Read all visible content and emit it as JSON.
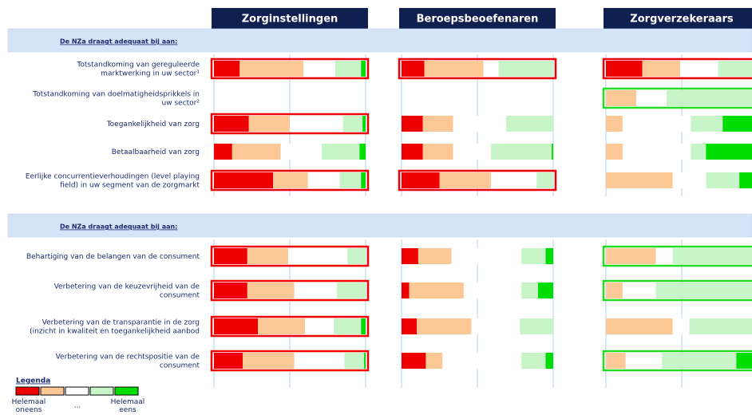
{
  "chart_data": {
    "type": "diverging-stacked-bar",
    "panels": [
      "Zorginstellingen",
      "Beroepsbeoefenaren",
      "Zorgverzekeraars"
    ],
    "colors": [
      "#ee0000",
      "#fbc896",
      "#ffffff",
      "#c8f5c8",
      "#00dd00"
    ],
    "sections": [
      {
        "heading": "De NZa draagt adequaat bij aan:",
        "rows": [
          {
            "label": [
              "Totstandkoming van gereguleerde",
              "marktwerking in uw sector¹"
            ],
            "values": [
              [
                17,
                42,
                21,
                17,
                3
              ],
              [
                15,
                39,
                10,
                36,
                0
              ],
              [
                24,
                25,
                25,
                26,
                0
              ]
            ],
            "highlight": [
              "#ee0000",
              "#ee0000",
              "#ee0000"
            ]
          },
          {
            "label": [
              "Totstandkoming van doelmatigheidsprikkels in",
              "uw sector²"
            ],
            "values": [
              null,
              null,
              [
                0,
                20,
                20,
                60,
                0
              ]
            ],
            "highlight": [
              null,
              null,
              "#22dd22"
            ]
          },
          {
            "label": [
              "Toegankelijkheid van zorg"
            ],
            "values": [
              [
                23,
                27,
                35,
                13,
                2
              ],
              [
                14,
                20,
                35,
                31,
                0
              ],
              [
                0,
                11,
                45,
                21,
                23
              ]
            ],
            "highlight": [
              "#ee0000",
              null,
              null
            ]
          },
          {
            "label": [
              "Betaalbaarheid van zorg"
            ],
            "values": [
              [
                12,
                32,
                27,
                25,
                4
              ],
              [
                14,
                20,
                25,
                40,
                1
              ],
              [
                0,
                11,
                45,
                10,
                34
              ]
            ],
            "highlight": [
              null,
              null,
              null
            ]
          },
          {
            "label": [
              "Eerlijke concurrentieverhoudingen (level playing",
              "field) in uw segment van de zorgmarkt"
            ],
            "values": [
              [
                39,
                23,
                21,
                14,
                3
              ],
              [
                25,
                34,
                30,
                11,
                0
              ],
              [
                0,
                44,
                22,
                22,
                12
              ]
            ],
            "highlight": [
              "#ee0000",
              "#ee0000",
              null
            ]
          }
        ]
      },
      {
        "heading": "De NZa draagt adequaat bij aan:",
        "rows": [
          {
            "label": [
              "Behartiging van de belangen van de consument"
            ],
            "values": [
              [
                22,
                27,
                39,
                12,
                0
              ],
              [
                11,
                22,
                46,
                16,
                5
              ],
              [
                0,
                33,
                11,
                56,
                0
              ]
            ],
            "highlight": [
              "#ee0000",
              null,
              "#22dd22"
            ]
          },
          {
            "label": [
              "Verbetering van de keuzevrijheid van de",
              "consument"
            ],
            "values": [
              [
                22,
                31,
                28,
                19,
                0
              ],
              [
                5,
                36,
                38,
                11,
                10
              ],
              [
                0,
                11,
                22,
                67,
                0
              ]
            ],
            "highlight": [
              "#ee0000",
              null,
              "#22dd22"
            ]
          },
          {
            "label": [
              "Verbetering van de transparantie in de zorg",
              "(inzicht in kwaliteit en toegankelijkheid aanbod"
            ],
            "values": [
              [
                29,
                31,
                19,
                18,
                3
              ],
              [
                10,
                36,
                32,
                22,
                0
              ],
              [
                0,
                44,
                11,
                45,
                0
              ]
            ],
            "highlight": [
              "#ee0000",
              null,
              null
            ]
          },
          {
            "label": [
              "Verbetering van de rechtspositie van de",
              "consument"
            ],
            "values": [
              [
                19,
                34,
                33,
                13,
                1
              ],
              [
                16,
                11,
                52,
                16,
                5
              ],
              [
                0,
                13,
                24,
                49,
                14
              ]
            ],
            "highlight": [
              "#ee0000",
              null,
              "#22dd22"
            ]
          }
        ]
      }
    ],
    "legend": {
      "title": "Legenda",
      "low": [
        "Helemaal",
        "oneens"
      ],
      "mid": "...",
      "high": [
        "Helemaal",
        "eens"
      ]
    }
  }
}
